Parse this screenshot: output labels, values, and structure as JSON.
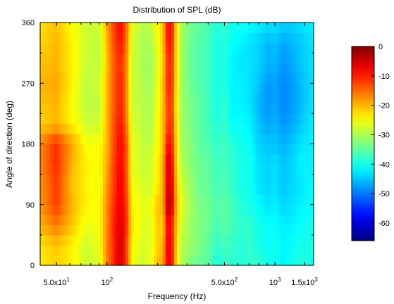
{
  "chart_data": {
    "type": "heatmap",
    "title": "Distribution of SPL (dB)",
    "xlabel": "Frequency (Hz)",
    "ylabel": "Angle of direction (deg)",
    "xscale": "log",
    "xlim": [
      40,
      1700
    ],
    "ylim": [
      0,
      360
    ],
    "x_ticks": [
      {
        "value": 50,
        "label": "5.0x10",
        "exp": "1"
      },
      {
        "value": 100,
        "label": "10",
        "exp": "2"
      },
      {
        "value": 500,
        "label": "5.0x10",
        "exp": "2"
      },
      {
        "value": 1000,
        "label": "10",
        "exp": "3"
      },
      {
        "value": 1500,
        "label": "1.5x10",
        "exp": "3"
      }
    ],
    "y_ticks": [
      {
        "value": 0,
        "label": "0"
      },
      {
        "value": 90,
        "label": "90"
      },
      {
        "value": 180,
        "label": "180"
      },
      {
        "value": 270,
        "label": "270"
      },
      {
        "value": 360,
        "label": "360"
      }
    ],
    "colorbar": {
      "min": -66,
      "max": 0,
      "ticks": [
        {
          "value": 0,
          "label": "0"
        },
        {
          "value": -10,
          "label": "-10"
        },
        {
          "value": -20,
          "label": "-20"
        },
        {
          "value": -30,
          "label": "-30"
        },
        {
          "value": -40,
          "label": "-40"
        },
        {
          "value": -50,
          "label": "-50"
        },
        {
          "value": -60,
          "label": "-60"
        }
      ],
      "colormap": "jet"
    },
    "angles": [
      0,
      30,
      60,
      90,
      120,
      150,
      180,
      210,
      240,
      270,
      300,
      330,
      360
    ],
    "freq_bins": [
      40,
      50,
      62,
      75,
      90,
      100,
      110,
      120,
      130,
      140,
      160,
      180,
      200,
      215,
      230,
      245,
      260,
      280,
      310,
      350,
      400,
      450,
      500,
      560,
      630,
      710,
      800,
      900,
      1000,
      1120,
      1250,
      1400,
      1700
    ],
    "values": [
      [
        -24,
        -22,
        -24,
        -28,
        -27,
        -17,
        -10,
        -5,
        -11,
        -25,
        -28,
        -26,
        -20,
        -19,
        -7,
        -10,
        -24,
        -30,
        -33,
        -35,
        -35,
        -40,
        -38,
        -38,
        -39,
        -38,
        -38,
        -40,
        -40,
        -42,
        -40,
        -39,
        -40
      ],
      [
        -23,
        -21,
        -24,
        -28,
        -26,
        -16,
        -11,
        -4,
        -12,
        -24,
        -27,
        -27,
        -22,
        -20,
        -6,
        -10,
        -23,
        -30,
        -31,
        -33,
        -35,
        -38,
        -37,
        -38,
        -39,
        -38,
        -40,
        -41,
        -40,
        -42,
        -41,
        -40,
        -40
      ],
      [
        -20,
        -16,
        -21,
        -26,
        -25,
        -17,
        -10,
        -6,
        -10,
        -23,
        -26,
        -27,
        -21,
        -22,
        -7,
        -11,
        -22,
        -28,
        -31,
        -33,
        -34,
        -37,
        -35,
        -37,
        -38,
        -38,
        -40,
        -41,
        -41,
        -42,
        -42,
        -41,
        -40
      ],
      [
        -18,
        -12,
        -20,
        -24,
        -25,
        -17,
        -11,
        -7,
        -11,
        -24,
        -26,
        -26,
        -21,
        -20,
        -2,
        -7,
        -21,
        -27,
        -30,
        -33,
        -34,
        -36,
        -35,
        -37,
        -39,
        -40,
        -41,
        -43,
        -42,
        -44,
        -43,
        -42,
        -41
      ],
      [
        -18,
        -12,
        -21,
        -24,
        -26,
        -18,
        -12,
        -7,
        -12,
        -25,
        -27,
        -28,
        -24,
        -20,
        -5,
        -8,
        -22,
        -28,
        -31,
        -34,
        -35,
        -37,
        -36,
        -38,
        -40,
        -40,
        -43,
        -44,
        -43,
        -45,
        -44,
        -43,
        -41
      ],
      [
        -17,
        -11,
        -20,
        -24,
        -25,
        -19,
        -12,
        -8,
        -13,
        -26,
        -28,
        -28,
        -24,
        -20,
        -4,
        -9,
        -23,
        -30,
        -32,
        -34,
        -35,
        -37,
        -37,
        -38,
        -40,
        -40,
        -43,
        -44,
        -43,
        -45,
        -44,
        -42,
        -42
      ],
      [
        -17,
        -11,
        -19,
        -25,
        -25,
        -20,
        -13,
        -8,
        -12,
        -26,
        -28,
        -29,
        -25,
        -21,
        -8,
        -11,
        -24,
        -31,
        -32,
        -35,
        -36,
        -38,
        -37,
        -39,
        -40,
        -41,
        -44,
        -45,
        -45,
        -46,
        -45,
        -43,
        -42
      ],
      [
        -22,
        -20,
        -24,
        -28,
        -28,
        -20,
        -13,
        -9,
        -15,
        -27,
        -29,
        -30,
        -25,
        -21,
        -12,
        -12,
        -25,
        -31,
        -33,
        -35,
        -37,
        -39,
        -38,
        -41,
        -41,
        -42,
        -45,
        -47,
        -46,
        -48,
        -47,
        -45,
        -42
      ],
      [
        -21,
        -20,
        -25,
        -29,
        -29,
        -20,
        -14,
        -10,
        -16,
        -28,
        -29,
        -30,
        -26,
        -21,
        -12,
        -13,
        -26,
        -31,
        -33,
        -35,
        -37,
        -40,
        -38,
        -42,
        -42,
        -43,
        -46,
        -48,
        -47,
        -49,
        -48,
        -46,
        -43
      ],
      [
        -20,
        -19,
        -24,
        -29,
        -28,
        -20,
        -14,
        -10,
        -16,
        -28,
        -29,
        -31,
        -26,
        -21,
        -10,
        -12,
        -25,
        -31,
        -34,
        -36,
        -37,
        -40,
        -39,
        -42,
        -42,
        -43,
        -45,
        -48,
        -47,
        -49,
        -48,
        -46,
        -43
      ],
      [
        -21,
        -20,
        -24,
        -28,
        -29,
        -21,
        -14,
        -11,
        -16,
        -28,
        -30,
        -31,
        -27,
        -22,
        -11,
        -12,
        -25,
        -31,
        -34,
        -36,
        -37,
        -40,
        -39,
        -42,
        -43,
        -43,
        -44,
        -46,
        -46,
        -48,
        -47,
        -45,
        -43
      ],
      [
        -22,
        -20,
        -24,
        -28,
        -29,
        -20,
        -13,
        -9,
        -15,
        -27,
        -30,
        -30,
        -26,
        -21,
        -9,
        -11,
        -25,
        -31,
        -34,
        -36,
        -37,
        -40,
        -39,
        -41,
        -42,
        -43,
        -44,
        -46,
        -45,
        -47,
        -46,
        -45,
        -43
      ],
      [
        -23,
        -21,
        -25,
        -28,
        -28,
        -19,
        -12,
        -8,
        -14,
        -26,
        -29,
        -29,
        -25,
        -21,
        -8,
        -10,
        -24,
        -31,
        -33,
        -35,
        -36,
        -39,
        -38,
        -40,
        -40,
        -41,
        -42,
        -43,
        -43,
        -44,
        -44,
        -43,
        -42
      ]
    ]
  }
}
